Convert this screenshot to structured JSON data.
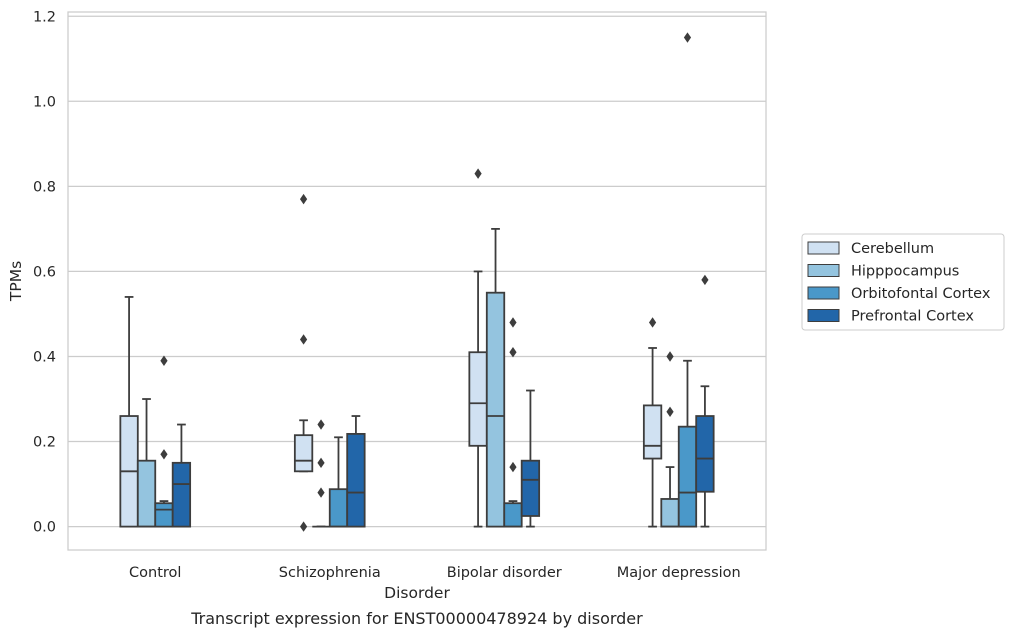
{
  "chart_data": {
    "type": "box",
    "caption": "Transcript expression for ENST00000478924 by disorder",
    "xlabel": "Disorder",
    "ylabel": "TPMs",
    "ylim": [
      -0.055,
      1.21
    ],
    "yticks": [
      "0.0",
      "0.2",
      "0.4",
      "0.6",
      "0.8",
      "1.0",
      "1.2"
    ],
    "grid": "horizontal",
    "legend_position": "right",
    "categories": [
      "Control",
      "Schizophrenia",
      "Bipolar disorder",
      "Major depression"
    ],
    "series": [
      {
        "name": "Cerebellum",
        "color": "#d0e1f2",
        "boxes": [
          {
            "whislo": 0.0,
            "q1": 0.0,
            "med": 0.13,
            "q3": 0.26,
            "whishi": 0.54,
            "fliers": []
          },
          {
            "whislo": 0.13,
            "q1": 0.13,
            "med": 0.155,
            "q3": 0.215,
            "whishi": 0.25,
            "fliers": [
              0.77,
              0.44,
              0.0
            ]
          },
          {
            "whislo": 0.0,
            "q1": 0.19,
            "med": 0.29,
            "q3": 0.41,
            "whishi": 0.6,
            "fliers": [
              0.83
            ]
          },
          {
            "whislo": 0.0,
            "q1": 0.16,
            "med": 0.19,
            "q3": 0.285,
            "whishi": 0.42,
            "fliers": [
              0.48
            ]
          }
        ]
      },
      {
        "name": "Hipppocampus",
        "color": "#94c4df",
        "boxes": [
          {
            "whislo": 0.0,
            "q1": 0.0,
            "med": 0.0,
            "q3": 0.155,
            "whishi": 0.3,
            "fliers": []
          },
          {
            "whislo": 0.0,
            "q1": 0.0,
            "med": 0.0,
            "q3": 0.0,
            "whishi": 0.0,
            "fliers": [
              0.24,
              0.15,
              0.08
            ]
          },
          {
            "whislo": 0.0,
            "q1": 0.0,
            "med": 0.26,
            "q3": 0.55,
            "whishi": 0.7,
            "fliers": []
          },
          {
            "whislo": 0.0,
            "q1": 0.0,
            "med": 0.0,
            "q3": 0.065,
            "whishi": 0.14,
            "fliers": [
              0.4,
              0.27
            ]
          }
        ]
      },
      {
        "name": "Orbitofontal Cortex",
        "color": "#4a98c9",
        "boxes": [
          {
            "whislo": 0.0,
            "q1": 0.0,
            "med": 0.04,
            "q3": 0.055,
            "whishi": 0.06,
            "fliers": [
              0.39,
              0.17
            ]
          },
          {
            "whislo": 0.0,
            "q1": 0.0,
            "med": 0.0,
            "q3": 0.088,
            "whishi": 0.21,
            "fliers": []
          },
          {
            "whislo": 0.0,
            "q1": 0.0,
            "med": 0.0,
            "q3": 0.055,
            "whishi": 0.06,
            "fliers": [
              0.48,
              0.41,
              0.14
            ]
          },
          {
            "whislo": 0.0,
            "q1": 0.0,
            "med": 0.08,
            "q3": 0.235,
            "whishi": 0.39,
            "fliers": [
              1.15
            ]
          }
        ]
      },
      {
        "name": "Prefrontal Cortex",
        "color": "#2266a9",
        "boxes": [
          {
            "whislo": 0.0,
            "q1": 0.0,
            "med": 0.1,
            "q3": 0.15,
            "whishi": 0.24,
            "fliers": []
          },
          {
            "whislo": 0.0,
            "q1": 0.0,
            "med": 0.08,
            "q3": 0.218,
            "whishi": 0.26,
            "fliers": []
          },
          {
            "whislo": 0.0,
            "q1": 0.025,
            "med": 0.11,
            "q3": 0.155,
            "whishi": 0.32,
            "fliers": []
          },
          {
            "whislo": 0.0,
            "q1": 0.082,
            "med": 0.16,
            "q3": 0.26,
            "whishi": 0.33,
            "fliers": [
              0.58
            ]
          }
        ]
      }
    ]
  }
}
